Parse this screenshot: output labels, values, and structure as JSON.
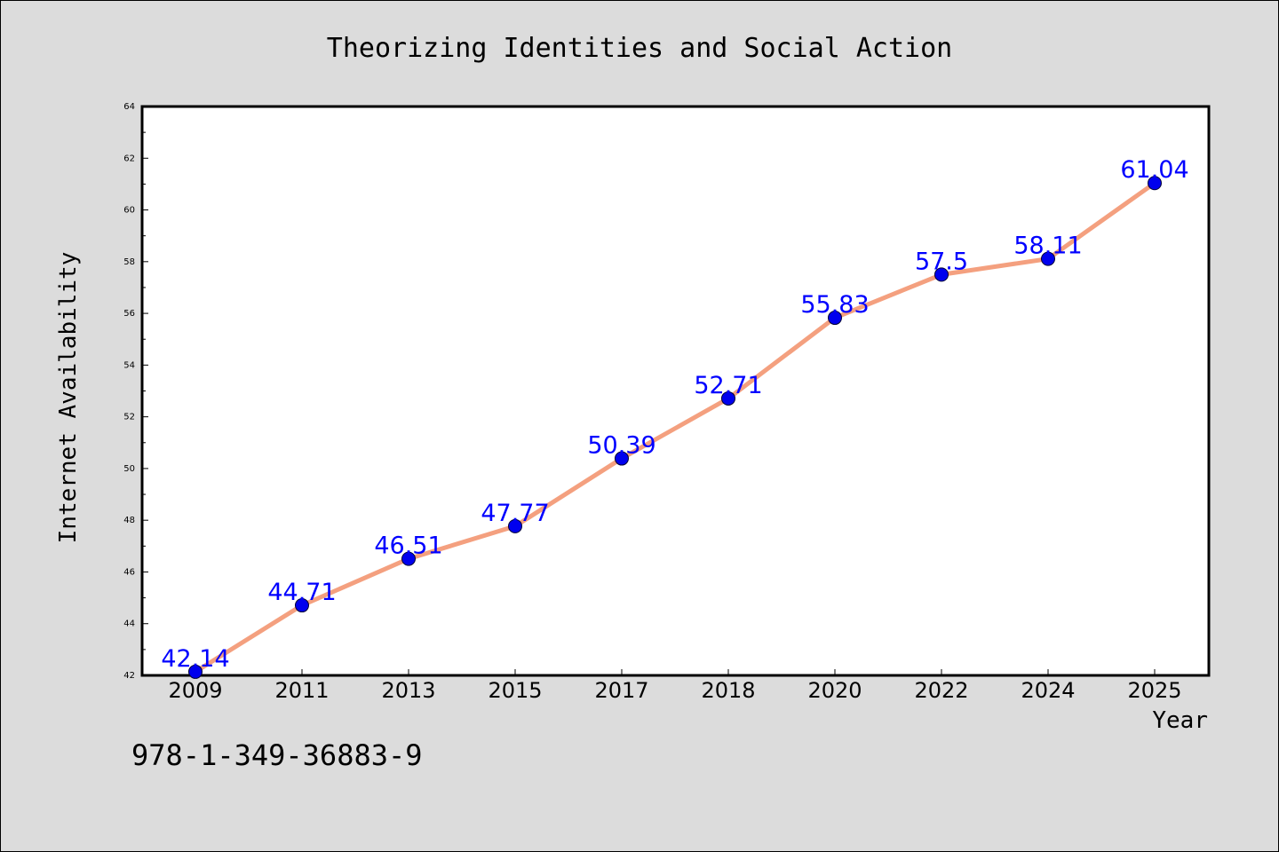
{
  "chart_data": {
    "type": "line",
    "title": "Theorizing Identities and Social Action",
    "xlabel": "Year",
    "ylabel": "Internet Availability",
    "categories": [
      "2009",
      "2011",
      "2013",
      "2015",
      "2017",
      "2018",
      "2020",
      "2022",
      "2024",
      "2025"
    ],
    "series": [
      {
        "values": [
          42.14,
          44.71,
          46.51,
          47.77,
          50.39,
          52.71,
          55.83,
          57.5,
          58.11,
          61.04
        ],
        "data_labels": [
          "42.14",
          "44.71",
          "46.51",
          "47.77",
          "50.39",
          "52.71",
          "55.83",
          "57.5",
          "58.11",
          "61.04"
        ],
        "line_color": "#f4a07f",
        "marker_color": "#0000ee",
        "label_color": "#0000ff"
      }
    ],
    "ylim": [
      42,
      64
    ],
    "yticks": [
      42,
      44,
      46,
      48,
      50,
      52,
      54,
      56,
      58,
      60,
      62,
      64
    ],
    "ytick_labels": [
      "42",
      "44",
      "46",
      "48",
      "50",
      "52",
      "54",
      "56",
      "58",
      "60",
      "62",
      "64"
    ],
    "grid": false,
    "legend": "none"
  },
  "footer": {
    "isbn": "978-1-349-36883-9"
  },
  "colors": {
    "background": "#dcdcdc",
    "plot_area": "#ffffff",
    "axes": "#000000"
  }
}
